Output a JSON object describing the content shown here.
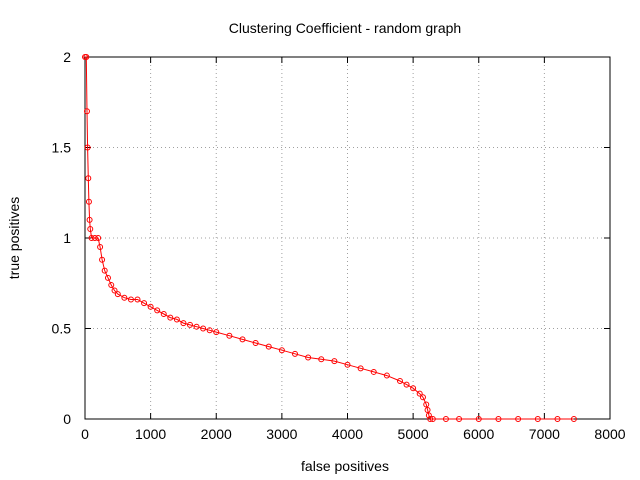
{
  "chart_data": {
    "type": "line",
    "title": "Clustering Coefficient - random graph",
    "xlabel": "false positives",
    "ylabel": "true positives",
    "xlim": [
      0,
      8000
    ],
    "ylim": [
      0,
      2
    ],
    "xticks": [
      0,
      1000,
      2000,
      3000,
      4000,
      5000,
      6000,
      7000,
      8000
    ],
    "yticks": [
      0,
      0.5,
      1,
      1.5,
      2
    ],
    "grid": true,
    "legend": "none",
    "series_color": "#ff0000",
    "marker": "circle",
    "x": [
      0,
      20,
      30,
      40,
      50,
      60,
      70,
      80,
      100,
      150,
      200,
      230,
      260,
      300,
      350,
      400,
      450,
      500,
      600,
      700,
      800,
      900,
      1000,
      1100,
      1200,
      1300,
      1400,
      1500,
      1600,
      1700,
      1800,
      1900,
      2000,
      2200,
      2400,
      2600,
      2800,
      3000,
      3200,
      3400,
      3600,
      3800,
      4000,
      4200,
      4400,
      4600,
      4800,
      4900,
      5000,
      5100,
      5150,
      5200,
      5220,
      5240,
      5260,
      5300,
      5500,
      5700,
      6000,
      6300,
      6600,
      6900,
      7200,
      7450
    ],
    "y": [
      2.0,
      2.0,
      1.7,
      1.5,
      1.33,
      1.2,
      1.1,
      1.05,
      1.0,
      1.0,
      1.0,
      0.95,
      0.88,
      0.82,
      0.78,
      0.74,
      0.71,
      0.69,
      0.67,
      0.66,
      0.66,
      0.64,
      0.62,
      0.6,
      0.58,
      0.56,
      0.55,
      0.53,
      0.52,
      0.51,
      0.5,
      0.49,
      0.48,
      0.46,
      0.44,
      0.42,
      0.4,
      0.38,
      0.36,
      0.34,
      0.33,
      0.32,
      0.3,
      0.28,
      0.26,
      0.24,
      0.21,
      0.19,
      0.17,
      0.14,
      0.12,
      0.08,
      0.05,
      0.02,
      0.0,
      0.0,
      0.0,
      0.0,
      0.0,
      0.0,
      0.0,
      0.0,
      0.0,
      0.0
    ]
  }
}
